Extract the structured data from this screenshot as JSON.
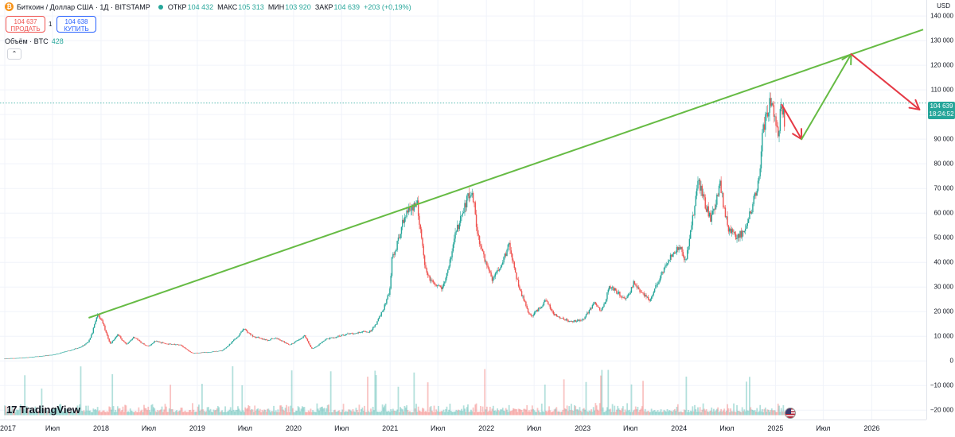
{
  "header": {
    "title": "Биткоин / Доллар США · 1Д · BITSTAMP",
    "ohlc": [
      {
        "label": "ОТКР",
        "value": "104 432"
      },
      {
        "label": "МАКС",
        "value": "105 313"
      },
      {
        "label": "МИН",
        "value": "103 920"
      },
      {
        "label": "ЗАКР",
        "value": "104 639"
      }
    ],
    "change": "+203 (+0,19%)",
    "sell_price": "104 637",
    "sell_label": "ПРОДАТЬ",
    "spread": "1",
    "buy_price": "104 638",
    "buy_label": "КУПИТЬ",
    "volume_label": "Объём · BTC",
    "volume_value": "428",
    "currency": "USD"
  },
  "price_tag": {
    "price": "104 639",
    "countdown": "18:24:52"
  },
  "logo_text": "TradingView",
  "colors": {
    "up": "#26a69a",
    "down": "#ef5350",
    "trendline": "#66bb44",
    "arrow_red": "#e53945",
    "arrow_green": "#66bb44"
  },
  "chart_data": {
    "type": "candlestick",
    "y_ticks": [
      "140 000",
      "130 000",
      "120 000",
      "110 000",
      "100 000",
      "90 000",
      "80 000",
      "70 000",
      "60 000",
      "50 000",
      "40 000",
      "30 000",
      "20 000",
      "10 000",
      "0",
      "−10 000",
      "−20 000"
    ],
    "x_ticks": [
      "2017",
      "Июл",
      "2018",
      "Июл",
      "2019",
      "Июл",
      "2020",
      "Июл",
      "2021",
      "Июл",
      "2022",
      "Июл",
      "2023",
      "Июл",
      "2024",
      "Июл",
      "2025",
      "Июл",
      "2026"
    ],
    "ylim": [
      -22000,
      146000
    ],
    "xlim": [
      "2017-01-01",
      "2026-07-15"
    ],
    "last_price": 104639,
    "price_path": [
      [
        "2017-01-01",
        1000
      ],
      [
        "2017-03-01",
        1200
      ],
      [
        "2017-05-01",
        1800
      ],
      [
        "2017-07-01",
        2500
      ],
      [
        "2017-09-01",
        4200
      ],
      [
        "2017-10-15",
        5600
      ],
      [
        "2017-11-15",
        8000
      ],
      [
        "2017-12-17",
        19200
      ],
      [
        "2018-01-10",
        15000
      ],
      [
        "2018-02-06",
        7000
      ],
      [
        "2018-03-05",
        11000
      ],
      [
        "2018-04-06",
        6800
      ],
      [
        "2018-05-05",
        9800
      ],
      [
        "2018-06-28",
        5900
      ],
      [
        "2018-07-25",
        8200
      ],
      [
        "2018-09-01",
        7000
      ],
      [
        "2018-11-01",
        6400
      ],
      [
        "2018-12-15",
        3200
      ],
      [
        "2019-02-01",
        3500
      ],
      [
        "2019-04-01",
        4100
      ],
      [
        "2019-05-15",
        8000
      ],
      [
        "2019-06-26",
        13000
      ],
      [
        "2019-08-01",
        10000
      ],
      [
        "2019-09-25",
        8300
      ],
      [
        "2019-10-26",
        9500
      ],
      [
        "2019-12-17",
        6600
      ],
      [
        "2020-02-13",
        10300
      ],
      [
        "2020-03-12",
        4900
      ],
      [
        "2020-04-30",
        8800
      ],
      [
        "2020-06-01",
        9500
      ],
      [
        "2020-07-27",
        11000
      ],
      [
        "2020-09-01",
        11500
      ],
      [
        "2020-10-20",
        12000
      ],
      [
        "2020-11-30",
        19500
      ],
      [
        "2020-12-31",
        29000
      ],
      [
        "2021-01-08",
        41000
      ],
      [
        "2021-02-20",
        57000
      ],
      [
        "2021-03-13",
        61000
      ],
      [
        "2021-04-14",
        64000
      ],
      [
        "2021-05-19",
        35000
      ],
      [
        "2021-06-22",
        30000
      ],
      [
        "2021-07-20",
        29800
      ],
      [
        "2021-09-07",
        52000
      ],
      [
        "2021-10-20",
        66000
      ],
      [
        "2021-11-10",
        68500
      ],
      [
        "2021-12-04",
        48000
      ],
      [
        "2022-01-24",
        33000
      ],
      [
        "2022-03-28",
        47000
      ],
      [
        "2022-05-12",
        28000
      ],
      [
        "2022-06-18",
        18000
      ],
      [
        "2022-08-15",
        24500
      ],
      [
        "2022-09-15",
        19000
      ],
      [
        "2022-11-09",
        16000
      ],
      [
        "2022-12-31",
        16500
      ],
      [
        "2023-02-15",
        24000
      ],
      [
        "2023-03-10",
        20000
      ],
      [
        "2023-04-14",
        30500
      ],
      [
        "2023-06-15",
        25000
      ],
      [
        "2023-07-13",
        31500
      ],
      [
        "2023-09-11",
        25000
      ],
      [
        "2023-10-24",
        34500
      ],
      [
        "2023-12-08",
        44000
      ],
      [
        "2024-01-11",
        47000
      ],
      [
        "2024-01-23",
        39000
      ],
      [
        "2024-02-28",
        62000
      ],
      [
        "2024-03-14",
        73500
      ],
      [
        "2024-05-01",
        57000
      ],
      [
        "2024-06-05",
        71500
      ],
      [
        "2024-07-05",
        54000
      ],
      [
        "2024-08-05",
        50000
      ],
      [
        "2024-09-06",
        53000
      ],
      [
        "2024-10-29",
        72500
      ],
      [
        "2024-11-13",
        93000
      ],
      [
        "2024-12-17",
        108000
      ],
      [
        "2025-01-13",
        90000
      ],
      [
        "2025-01-20",
        106000
      ],
      [
        "2025-02-05",
        97000
      ]
    ],
    "volume_ylim": [
      0,
      8000
    ]
  },
  "projection": {
    "trendline": [
      [
        "2017-11-15",
        17500
      ],
      [
        "2026-07-15",
        134500
      ]
    ],
    "arrow_down_1": [
      [
        "2025-01-25",
        104000
      ],
      [
        "2025-04-10",
        90000
      ]
    ],
    "arrow_up": [
      [
        "2025-04-10",
        90000
      ],
      [
        "2025-10-15",
        124500
      ]
    ],
    "arrow_down_2": [
      [
        "2025-10-15",
        124500
      ],
      [
        "2026-07-01",
        102000
      ]
    ]
  }
}
